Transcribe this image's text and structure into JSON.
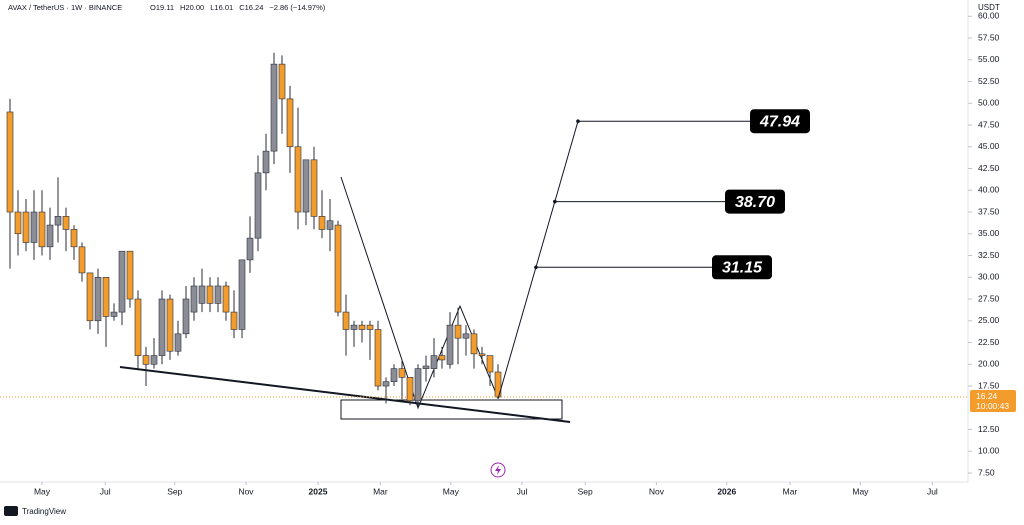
{
  "chart_data": {
    "type": "candlestick",
    "title": "AVAX / TetherUS · 1W · BINANCE",
    "legend_values": [
      "O19.11",
      "H20.00",
      "L16.01",
      "C16.24",
      "−2.86 (−14.97%)"
    ],
    "currency": "USDT",
    "countdown": "10:00:43",
    "brand": "TradingView",
    "up_color": "#8a8d96",
    "down_color": "#f39c2b",
    "ohlc": {
      "open": [
        49,
        37.5,
        37.5,
        34,
        37.5,
        33.5,
        36,
        37,
        35.5,
        33.5,
        30.5,
        25,
        30,
        25.5,
        26,
        33,
        27.5,
        21,
        20,
        21,
        27.5,
        21.5,
        23.5,
        26,
        27,
        29,
        27,
        29,
        26,
        24,
        32,
        34.5,
        42,
        44.5,
        54.5,
        50.5,
        45,
        37.5,
        43.5,
        37,
        35.5,
        36,
        26,
        24,
        24.5,
        24.5,
        24,
        17.5,
        18,
        19.5,
        18.5,
        15.8,
        19.5,
        19.5,
        21,
        20,
        24.5,
        23,
        23.5,
        21.2,
        21,
        19.11
      ],
      "high": [
        50.5,
        40,
        39,
        40,
        40,
        38,
        41.5,
        38,
        36,
        34,
        30.5,
        31,
        30,
        27,
        33,
        33,
        28.5,
        22,
        23,
        28.5,
        28,
        25,
        29,
        30,
        31,
        30,
        30,
        29.5,
        28.5,
        32,
        37,
        44,
        46.5,
        55.8,
        55.5,
        52,
        49.5,
        43.5,
        45,
        40,
        39,
        36.5,
        28,
        25,
        25,
        25,
        25,
        18.5,
        20,
        20.5,
        18.5,
        20,
        21,
        23,
        22,
        26,
        26.5,
        24.5,
        24,
        22,
        21,
        20
      ],
      "low": [
        31,
        32.5,
        33,
        32,
        32.5,
        32,
        34,
        33,
        32,
        29.5,
        24,
        23.5,
        22,
        25,
        24.5,
        26.5,
        19.5,
        17.5,
        19.5,
        20,
        20.5,
        21,
        23,
        25,
        26,
        26,
        26,
        25,
        23,
        23,
        30.5,
        33,
        40,
        43,
        46.5,
        42,
        35.5,
        36,
        35.5,
        34.5,
        33,
        25.5,
        21,
        22,
        22.5,
        20.5,
        17,
        15.5,
        17.5,
        16,
        15.3,
        15,
        18,
        18.5,
        19.5,
        19.5,
        20,
        21,
        19.5,
        20,
        17.5,
        16.01
      ],
      "close": [
        37.5,
        35,
        34,
        37.5,
        33.5,
        36,
        37,
        35.5,
        33.5,
        30.5,
        25,
        30,
        25.5,
        26,
        33,
        27.5,
        21,
        20,
        21,
        27.5,
        21.5,
        23.5,
        27.5,
        29,
        29,
        27,
        29,
        26,
        24,
        32,
        34.5,
        42,
        44.5,
        54.5,
        50.5,
        45,
        37.5,
        43.5,
        37,
        35.5,
        36.5,
        26,
        24,
        24.5,
        24,
        24,
        17.5,
        18,
        19.5,
        18.5,
        15.8,
        19.5,
        19.8,
        21,
        20.5,
        24.5,
        23,
        23.5,
        21.2,
        21,
        19.11,
        16.24
      ]
    },
    "last_price": {
      "value": 16.24,
      "label": "16.24"
    },
    "targets": {
      "values": [
        31.15,
        38.7,
        47.94
      ],
      "value_labels": [
        "31.15",
        "38.70",
        "47.94"
      ]
    },
    "xlim": [
      -1.25,
      119.75
    ],
    "xticks": [
      {
        "value": 4,
        "label": "May"
      },
      {
        "value": 11.9,
        "label": "Jul"
      },
      {
        "value": 20.6,
        "label": "Sep"
      },
      {
        "value": 29.5,
        "label": "Nov"
      },
      {
        "value": 38.5,
        "label": "2025"
      },
      {
        "value": 46.3,
        "label": "Mar"
      },
      {
        "value": 55.1,
        "label": "May"
      },
      {
        "value": 64,
        "label": "Jul"
      },
      {
        "value": 71.9,
        "label": "Sep"
      },
      {
        "value": 80.8,
        "label": "Nov"
      },
      {
        "value": 89.6,
        "label": "2026"
      },
      {
        "value": 97.5,
        "label": "Mar"
      },
      {
        "value": 106.3,
        "label": "May"
      },
      {
        "value": 115.3,
        "label": "Jul"
      }
    ],
    "ylim": [
      6.47,
      61.87
    ],
    "yticks": [
      {
        "value": 7.5,
        "label": "7.50"
      },
      {
        "value": 10,
        "label": "10.00"
      },
      {
        "value": 12.5,
        "label": "12.50"
      },
      {
        "value": 17.5,
        "label": "17.50"
      },
      {
        "value": 20,
        "label": "20.00"
      },
      {
        "value": 22.5,
        "label": "22.50"
      },
      {
        "value": 25,
        "label": "25.00"
      },
      {
        "value": 27.5,
        "label": "27.50"
      },
      {
        "value": 30,
        "label": "30.00"
      },
      {
        "value": 32.5,
        "label": "32.50"
      },
      {
        "value": 35,
        "label": "35.00"
      },
      {
        "value": 37.5,
        "label": "37.50"
      },
      {
        "value": 40,
        "label": "40.00"
      },
      {
        "value": 42.5,
        "label": "42.50"
      },
      {
        "value": 45,
        "label": "45.00"
      },
      {
        "value": 47.5,
        "label": "47.50"
      },
      {
        "value": 50,
        "label": "50.00"
      },
      {
        "value": 52.5,
        "label": "52.50"
      },
      {
        "value": 55,
        "label": "55.00"
      },
      {
        "value": 57.5,
        "label": "57.50"
      },
      {
        "value": 60,
        "label": "60.00"
      }
    ],
    "grid": false
  }
}
